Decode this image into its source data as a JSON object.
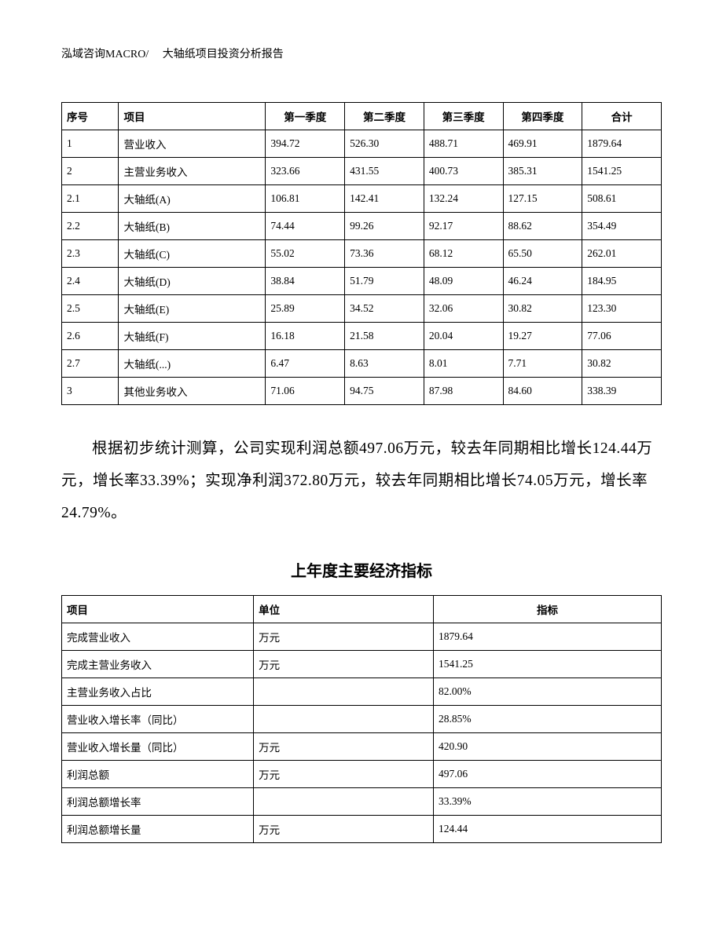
{
  "header": "泓域咨询MACRO/　 大轴纸项目投资分析报告",
  "table1": {
    "headers": {
      "seq": "序号",
      "item": "项目",
      "q1": "第一季度",
      "q2": "第二季度",
      "q3": "第三季度",
      "q4": "第四季度",
      "total": "合计"
    },
    "header_align": {
      "seq": "left",
      "item": "left",
      "q1": "center",
      "q2": "center",
      "q3": "center",
      "q4": "center",
      "total": "center"
    },
    "rows": [
      {
        "seq": "1",
        "item": "营业收入",
        "q1": "394.72",
        "q2": "526.30",
        "q3": "488.71",
        "q4": "469.91",
        "total": "1879.64"
      },
      {
        "seq": "2",
        "item": "主营业务收入",
        "q1": "323.66",
        "q2": "431.55",
        "q3": "400.73",
        "q4": "385.31",
        "total": "1541.25"
      },
      {
        "seq": "2.1",
        "item": "大轴纸(A)",
        "q1": "106.81",
        "q2": "142.41",
        "q3": "132.24",
        "q4": "127.15",
        "total": "508.61"
      },
      {
        "seq": "2.2",
        "item": "大轴纸(B)",
        "q1": "74.44",
        "q2": "99.26",
        "q3": "92.17",
        "q4": "88.62",
        "total": "354.49"
      },
      {
        "seq": "2.3",
        "item": "大轴纸(C)",
        "q1": "55.02",
        "q2": "73.36",
        "q3": "68.12",
        "q4": "65.50",
        "total": "262.01"
      },
      {
        "seq": "2.4",
        "item": "大轴纸(D)",
        "q1": "38.84",
        "q2": "51.79",
        "q3": "48.09",
        "q4": "46.24",
        "total": "184.95"
      },
      {
        "seq": "2.5",
        "item": "大轴纸(E)",
        "q1": "25.89",
        "q2": "34.52",
        "q3": "32.06",
        "q4": "30.82",
        "total": "123.30"
      },
      {
        "seq": "2.6",
        "item": "大轴纸(F)",
        "q1": "16.18",
        "q2": "21.58",
        "q3": "20.04",
        "q4": "19.27",
        "total": "77.06"
      },
      {
        "seq": "2.7",
        "item": "大轴纸(...)",
        "q1": "6.47",
        "q2": "8.63",
        "q3": "8.01",
        "q4": "7.71",
        "total": "30.82"
      },
      {
        "seq": "3",
        "item": "其他业务收入",
        "q1": "71.06",
        "q2": "94.75",
        "q3": "87.98",
        "q4": "84.60",
        "total": "338.39"
      }
    ]
  },
  "paragraph": "根据初步统计测算，公司实现利润总额497.06万元，较去年同期相比增长124.44万元，增长率33.39%；实现净利润372.80万元，较去年同期相比增长74.05万元，增长率24.79%。",
  "section_title": "上年度主要经济指标",
  "table2": {
    "headers": {
      "proj": "项目",
      "unit": "单位",
      "indicator": "指标"
    },
    "rows": [
      {
        "proj": "完成营业收入",
        "unit": "万元",
        "indicator": "1879.64"
      },
      {
        "proj": "完成主营业务收入",
        "unit": "万元",
        "indicator": "1541.25"
      },
      {
        "proj": "主营业务收入占比",
        "unit": "",
        "indicator": "82.00%"
      },
      {
        "proj": "营业收入增长率（同比）",
        "unit": "",
        "indicator": "28.85%"
      },
      {
        "proj": "营业收入增长量（同比）",
        "unit": "万元",
        "indicator": "420.90"
      },
      {
        "proj": "利润总额",
        "unit": "万元",
        "indicator": "497.06"
      },
      {
        "proj": "利润总额增长率",
        "unit": "",
        "indicator": "33.39%"
      },
      {
        "proj": "利润总额增长量",
        "unit": "万元",
        "indicator": "124.44"
      }
    ]
  },
  "styling": {
    "background_color": "#ffffff",
    "text_color": "#000000",
    "border_color": "#000000",
    "header_fontsize": 14,
    "table_fontsize": 13.5,
    "paragraph_fontsize": 19.5,
    "section_title_fontsize": 20,
    "font_family": "SimSun"
  }
}
